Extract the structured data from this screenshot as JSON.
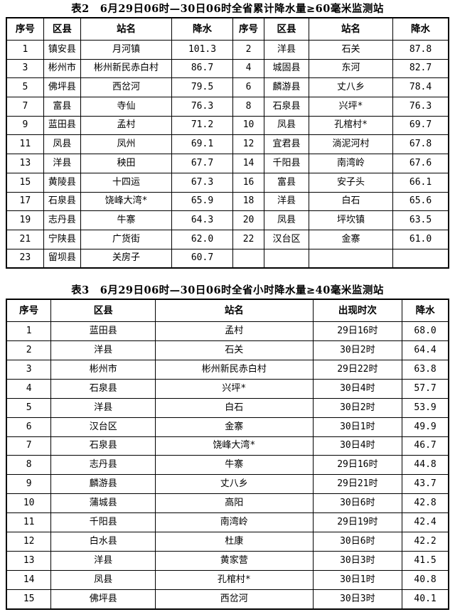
{
  "page": {
    "background_color": "#ffffff",
    "text_color": "#000000",
    "border_color": "#000000"
  },
  "table2": {
    "title": "表2　6月29日06时—30日06时全省累计降水量≥60毫米监测站",
    "headers": [
      "序号",
      "区县",
      "站名",
      "降水",
      "序号",
      "区县",
      "站名",
      "降水"
    ],
    "rows": [
      [
        "1",
        "镇安县",
        "月河镇",
        "101.3",
        "2",
        "洋县",
        "石关",
        "87.8"
      ],
      [
        "3",
        "彬州市",
        "彬州新民赤白村",
        "86.7",
        "4",
        "城固县",
        "东河",
        "82.7"
      ],
      [
        "5",
        "佛坪县",
        "西岔河",
        "79.5",
        "6",
        "麟游县",
        "丈八乡",
        "78.4"
      ],
      [
        "7",
        "富县",
        "寺仙",
        "76.3",
        "8",
        "石泉县",
        "兴坪*",
        "76.3"
      ],
      [
        "9",
        "蓝田县",
        "孟村",
        "71.2",
        "10",
        "凤县",
        "孔棺村*",
        "69.7"
      ],
      [
        "11",
        "凤县",
        "凤州",
        "69.1",
        "12",
        "宜君县",
        "淌泥河村",
        "67.8"
      ],
      [
        "13",
        "洋县",
        "秧田",
        "67.7",
        "14",
        "千阳县",
        "南湾岭",
        "67.6"
      ],
      [
        "15",
        "黄陵县",
        "十四运",
        "67.3",
        "16",
        "富县",
        "安子头",
        "66.1"
      ],
      [
        "17",
        "石泉县",
        "饶峰大湾*",
        "65.9",
        "18",
        "洋县",
        "白石",
        "65.6"
      ],
      [
        "19",
        "志丹县",
        "牛寨",
        "64.3",
        "20",
        "凤县",
        "坪坎镇",
        "63.5"
      ],
      [
        "21",
        "宁陕县",
        "广货街",
        "62.0",
        "22",
        "汉台区",
        "金寨",
        "61.0"
      ],
      [
        "23",
        "留坝县",
        "关房子",
        "60.7",
        "",
        "",
        "",
        ""
      ]
    ]
  },
  "table3": {
    "title": "表3　6月29日06时—30日06时全省小时降水量≥40毫米监测站",
    "headers": [
      "序号",
      "区县",
      "站名",
      "出现时次",
      "降水"
    ],
    "rows": [
      [
        "1",
        "蓝田县",
        "孟村",
        "29日16时",
        "68.0"
      ],
      [
        "2",
        "洋县",
        "石关",
        "30日2时",
        "64.4"
      ],
      [
        "3",
        "彬州市",
        "彬州新民赤白村",
        "29日22时",
        "63.8"
      ],
      [
        "4",
        "石泉县",
        "兴坪*",
        "30日4时",
        "57.7"
      ],
      [
        "5",
        "洋县",
        "白石",
        "30日2时",
        "53.9"
      ],
      [
        "6",
        "汉台区",
        "金寨",
        "30日1时",
        "49.9"
      ],
      [
        "7",
        "石泉县",
        "饶峰大湾*",
        "30日4时",
        "46.7"
      ],
      [
        "8",
        "志丹县",
        "牛寨",
        "29日16时",
        "44.8"
      ],
      [
        "9",
        "麟游县",
        "丈八乡",
        "29日21时",
        "43.7"
      ],
      [
        "10",
        "蒲城县",
        "高阳",
        "30日6时",
        "42.8"
      ],
      [
        "11",
        "千阳县",
        "南湾岭",
        "29日19时",
        "42.4"
      ],
      [
        "12",
        "白水县",
        "杜康",
        "30日6时",
        "42.2"
      ],
      [
        "13",
        "洋县",
        "黄家营",
        "30日3时",
        "41.5"
      ],
      [
        "14",
        "凤县",
        "孔棺村*",
        "30日1时",
        "40.8"
      ],
      [
        "15",
        "佛坪县",
        "西岔河",
        "30日3时",
        "40.1"
      ]
    ]
  }
}
